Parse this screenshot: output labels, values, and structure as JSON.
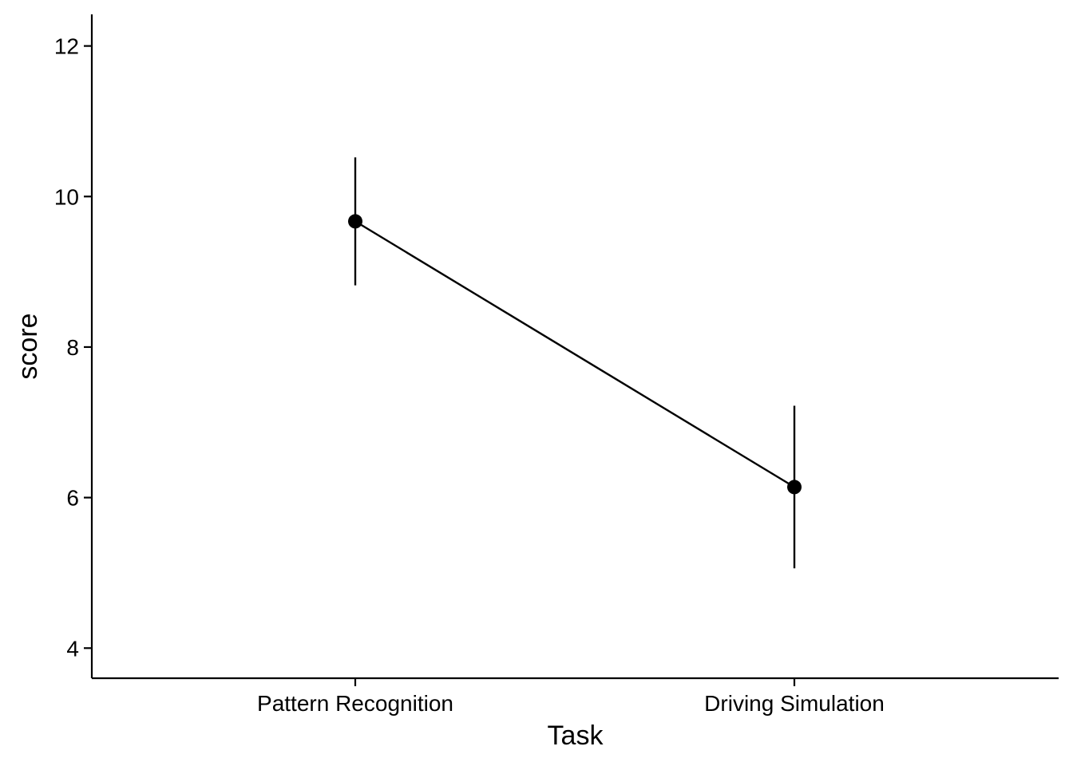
{
  "chart_data": {
    "type": "line",
    "title": "",
    "xlabel": "Task",
    "ylabel": "score",
    "categories": [
      "Pattern Recognition",
      "Driving Simulation"
    ],
    "series": [
      {
        "values": [
          9.67,
          6.14
        ],
        "error_lower": [
          8.82,
          5.06
        ],
        "error_upper": [
          10.52,
          7.22
        ]
      }
    ],
    "ylim": [
      3.6,
      12.42
    ],
    "yticks": [
      4,
      6,
      8,
      10,
      12
    ],
    "ytick_labels": [
      "4",
      "6",
      "8",
      "10",
      "12"
    ],
    "grid": false,
    "legend": "none",
    "colors": {
      "series": "#000000",
      "axis": "#000000",
      "background": "#ffffff"
    }
  }
}
